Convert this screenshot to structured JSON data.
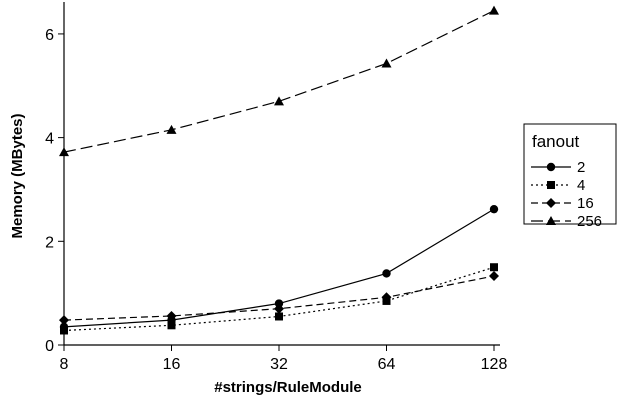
{
  "chart_data": {
    "type": "line",
    "title": "",
    "xlabel": "#strings/RuleModule",
    "ylabel": "Memory (MBytes)",
    "x_scale": "log2",
    "x": [
      8,
      16,
      32,
      64,
      128
    ],
    "x_tick_labels": [
      "8",
      "16",
      "32",
      "64",
      "128"
    ],
    "y_ticks": [
      0,
      2,
      4,
      6
    ],
    "y_tick_labels": [
      "0",
      "2",
      "4",
      "6"
    ],
    "xlim": [
      8,
      128
    ],
    "ylim": [
      0,
      6.5
    ],
    "grid": false,
    "legend": {
      "title": "fanout",
      "placement": "right"
    },
    "series": [
      {
        "name": "2",
        "marker": "circle",
        "dash": "solid",
        "values": [
          0.35,
          0.48,
          0.8,
          1.38,
          2.62
        ]
      },
      {
        "name": "4",
        "marker": "square",
        "dash": "dotted",
        "values": [
          0.28,
          0.38,
          0.55,
          0.85,
          1.5
        ]
      },
      {
        "name": "16",
        "marker": "diamond",
        "dash": "dashed",
        "values": [
          0.48,
          0.56,
          0.7,
          0.92,
          1.33
        ]
      },
      {
        "name": "256",
        "marker": "triangle",
        "dash": "longdash",
        "values": [
          3.72,
          4.15,
          4.7,
          5.43,
          6.45
        ]
      }
    ],
    "colors": {
      "lines": "#000000",
      "background": "#ffffff"
    }
  }
}
